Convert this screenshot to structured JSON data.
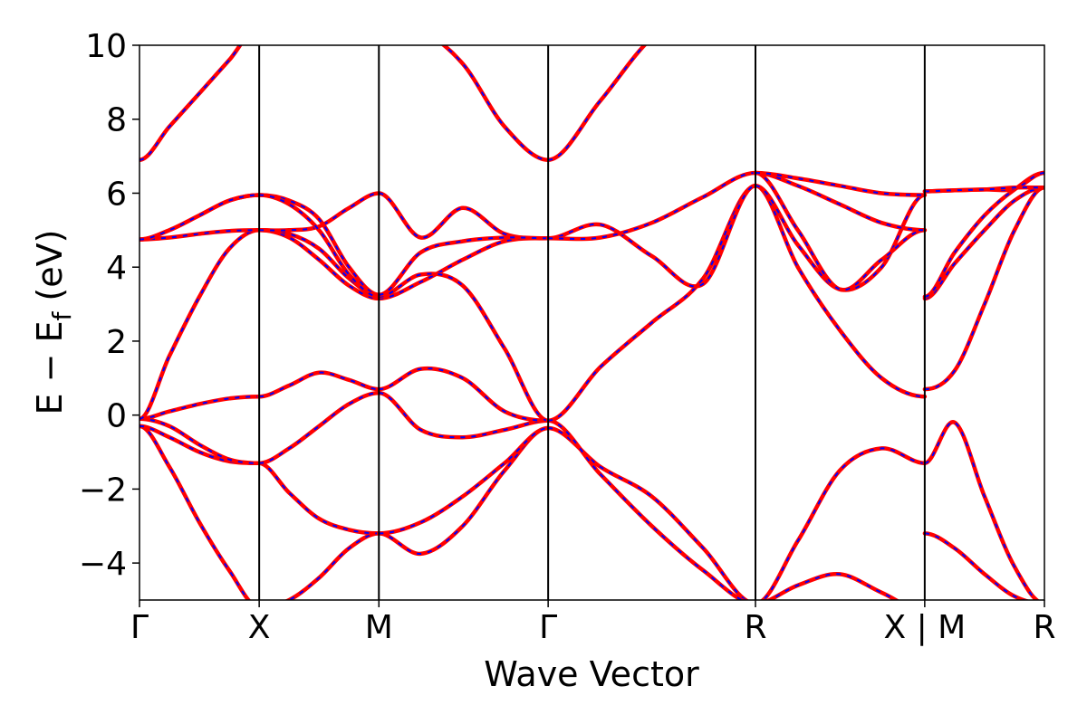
{
  "chart_data": {
    "type": "line",
    "xlabel": "Wave Vector",
    "ylabel": "E − E_f (eV)",
    "ylabel_main": "E − E",
    "ylabel_sub": "f",
    "ylabel_unit": "(eV)",
    "ylim": [
      -5,
      10
    ],
    "yticks": [
      -4,
      -2,
      0,
      2,
      4,
      6,
      8,
      10
    ],
    "ytick_labels": [
      "−4",
      "−2",
      "0",
      "2",
      "4",
      "6",
      "8",
      "10"
    ],
    "grid": false,
    "colors": {
      "solid": "#ff0000",
      "dashed": "#0000ff",
      "lines": "#000000"
    },
    "kpoints": [
      {
        "label": "Γ",
        "x": 0
      },
      {
        "label": "X",
        "x": 1
      },
      {
        "label": "M",
        "x": 2
      },
      {
        "label": "Γ",
        "x": 3.414
      },
      {
        "label": "R",
        "x": 5.146
      },
      {
        "label": "X | M",
        "x": 6.56
      },
      {
        "label": "R",
        "x": 7.56
      }
    ],
    "series": [
      {
        "segment": "Γ-X",
        "x": [
          0,
          0.25,
          0.5,
          0.75,
          1
        ],
        "bands": [
          [
            -0.3,
            -1.4,
            -2.9,
            -4.2,
            -5.2
          ],
          [
            -0.3,
            -0.6,
            -1.0,
            -1.25,
            -1.3
          ],
          [
            -0.1,
            -0.3,
            -0.8,
            -1.2,
            -1.3
          ],
          [
            -0.1,
            0.1,
            0.3,
            0.45,
            0.5
          ],
          [
            -0.1,
            1.6,
            3.2,
            4.5,
            5.0
          ],
          [
            4.75,
            4.8,
            4.9,
            4.98,
            5.0
          ],
          [
            4.75,
            5.0,
            5.4,
            5.8,
            5.95
          ],
          [
            4.75,
            5.0,
            5.4,
            5.8,
            5.95
          ],
          [
            6.9,
            7.8,
            8.7,
            9.6,
            10.5
          ]
        ]
      },
      {
        "segment": "X-M",
        "x": [
          1,
          1.25,
          1.5,
          1.75,
          2
        ],
        "bands": [
          [
            -5.2,
            -5.0,
            -4.4,
            -3.6,
            -3.2
          ],
          [
            -1.3,
            -2.1,
            -2.8,
            -3.1,
            -3.2
          ],
          [
            -1.3,
            -0.9,
            -0.3,
            0.3,
            0.6
          ],
          [
            0.5,
            0.8,
            1.15,
            0.95,
            0.7
          ],
          [
            5.0,
            4.8,
            4.2,
            3.5,
            3.15
          ],
          [
            5.0,
            4.9,
            4.5,
            3.7,
            3.2
          ],
          [
            5.0,
            5.0,
            5.1,
            5.6,
            6.0
          ],
          [
            5.95,
            5.8,
            5.3,
            4.0,
            3.25
          ],
          [
            5.95,
            5.7,
            5.0,
            3.8,
            3.2
          ]
        ]
      },
      {
        "segment": "M-Γ",
        "x": [
          2,
          2.35,
          2.7,
          3.05,
          3.414
        ],
        "bands": [
          [
            -3.2,
            -3.75,
            -3.0,
            -1.5,
            -0.35
          ],
          [
            -3.2,
            -2.9,
            -2.2,
            -1.3,
            -0.35
          ],
          [
            0.6,
            -0.4,
            -0.6,
            -0.4,
            -0.15
          ],
          [
            0.7,
            1.25,
            1.0,
            0.1,
            -0.15
          ],
          [
            3.15,
            3.6,
            4.2,
            4.7,
            4.78
          ],
          [
            3.2,
            3.8,
            3.5,
            1.8,
            -0.15
          ],
          [
            6.0,
            4.8,
            5.6,
            4.9,
            4.78
          ],
          [
            3.25,
            4.4,
            4.7,
            4.8,
            4.78
          ],
          [
            10.5,
            10.4,
            9.5,
            7.8,
            6.9
          ]
        ]
      },
      {
        "segment": "Γ-R",
        "x": [
          3.414,
          3.85,
          4.28,
          4.71,
          5.146
        ],
        "bands": [
          [
            -0.35,
            -1.4,
            -2.2,
            -3.6,
            -5.1
          ],
          [
            -0.15,
            -1.6,
            -3.0,
            -4.2,
            -5.1
          ],
          [
            -0.15,
            1.3,
            2.5,
            3.7,
            6.2
          ],
          [
            4.78,
            5.15,
            4.3,
            3.55,
            6.2
          ],
          [
            4.78,
            4.8,
            5.2,
            5.9,
            6.55
          ],
          [
            6.9,
            8.5,
            10.2,
            11.0,
            11.0
          ]
        ]
      },
      {
        "segment": "R-X",
        "x": [
          5.146,
          5.5,
          5.85,
          6.2,
          6.56
        ],
        "bands": [
          [
            -5.1,
            -3.4,
            -1.5,
            -0.9,
            -1.3
          ],
          [
            -5.1,
            -4.6,
            -4.3,
            -4.8,
            -5.3
          ],
          [
            6.2,
            4.0,
            2.3,
            1.0,
            0.5
          ],
          [
            6.2,
            4.6,
            3.4,
            4.0,
            5.95
          ],
          [
            6.55,
            5.0,
            3.4,
            4.2,
            5.0
          ],
          [
            6.55,
            6.2,
            5.7,
            5.2,
            5.0
          ],
          [
            6.55,
            6.4,
            6.2,
            6.0,
            5.95
          ]
        ]
      },
      {
        "segment": "M-R",
        "x": [
          6.56,
          6.81,
          7.06,
          7.31,
          7.56
        ],
        "bands": [
          [
            -3.2,
            -3.6,
            -4.3,
            -4.9,
            -5.1
          ],
          [
            -1.3,
            -0.2,
            -2.2,
            -4.1,
            -5.1
          ],
          [
            0.7,
            1.2,
            3.0,
            5.0,
            6.15
          ],
          [
            3.15,
            4.1,
            5.0,
            5.8,
            6.15
          ],
          [
            3.2,
            4.4,
            5.4,
            6.1,
            6.55
          ],
          [
            6.05,
            6.08,
            6.1,
            6.12,
            6.55
          ],
          [
            6.05,
            6.08,
            6.1,
            6.15,
            6.15
          ]
        ]
      }
    ]
  }
}
